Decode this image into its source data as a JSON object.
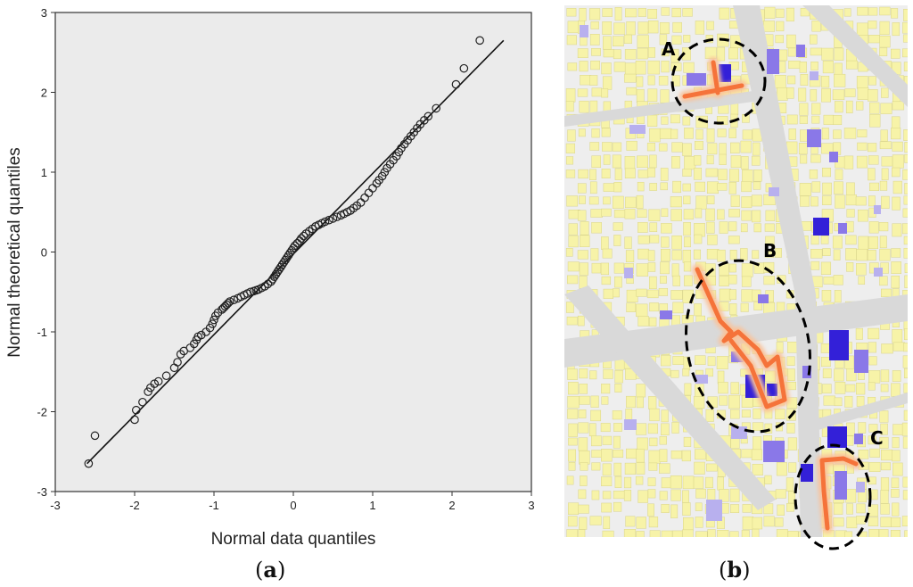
{
  "figure": {
    "captions": {
      "a": {
        "open": "(",
        "letter": "a",
        "close": ")"
      },
      "b": {
        "open": "(",
        "letter": "b",
        "close": ")"
      }
    }
  },
  "chart_data": {
    "type": "scatter",
    "subtype": "normal Q-Q plot",
    "xlabel": "Normal data quantiles",
    "ylabel": "Normal theoretical quantiles",
    "xlim": [
      -3,
      3
    ],
    "ylim": [
      -3,
      3
    ],
    "xticks": [
      "-3",
      "-2",
      "-1",
      "0",
      "1",
      "2",
      "3"
    ],
    "yticks": [
      "-3",
      "-2",
      "-1",
      "0",
      "1",
      "2",
      "3"
    ],
    "background": "#ebebeb",
    "reference_line": {
      "x": [
        -2.6,
        2.65
      ],
      "y": [
        -2.65,
        2.65
      ]
    },
    "points": {
      "x": [
        -2.58,
        -2.5,
        -2.0,
        -1.98,
        -1.9,
        -1.83,
        -1.8,
        -1.75,
        -1.7,
        -1.6,
        -1.5,
        -1.46,
        -1.42,
        -1.38,
        -1.3,
        -1.25,
        -1.22,
        -1.2,
        -1.16,
        -1.1,
        -1.05,
        -1.02,
        -1.0,
        -0.98,
        -0.95,
        -0.9,
        -0.88,
        -0.86,
        -0.84,
        -0.82,
        -0.8,
        -0.75,
        -0.7,
        -0.66,
        -0.62,
        -0.58,
        -0.54,
        -0.5,
        -0.47,
        -0.44,
        -0.4,
        -0.36,
        -0.32,
        -0.28,
        -0.26,
        -0.24,
        -0.22,
        -0.2,
        -0.18,
        -0.16,
        -0.14,
        -0.12,
        -0.1,
        -0.08,
        -0.06,
        -0.04,
        -0.02,
        0.0,
        0.02,
        0.05,
        0.08,
        0.1,
        0.13,
        0.16,
        0.2,
        0.24,
        0.28,
        0.32,
        0.36,
        0.4,
        0.45,
        0.5,
        0.55,
        0.6,
        0.64,
        0.68,
        0.72,
        0.76,
        0.8,
        0.85,
        0.9,
        0.95,
        1.0,
        1.05,
        1.08,
        1.12,
        1.15,
        1.18,
        1.22,
        1.26,
        1.3,
        1.33,
        1.36,
        1.4,
        1.44,
        1.48,
        1.52,
        1.56,
        1.6,
        1.65,
        1.7,
        1.8,
        2.05,
        2.15,
        2.35
      ],
      "y": [
        -2.65,
        -2.3,
        -2.1,
        -1.98,
        -1.88,
        -1.75,
        -1.7,
        -1.65,
        -1.62,
        -1.55,
        -1.45,
        -1.38,
        -1.28,
        -1.24,
        -1.2,
        -1.15,
        -1.1,
        -1.06,
        -1.04,
        -1.0,
        -0.95,
        -0.9,
        -0.85,
        -0.8,
        -0.76,
        -0.72,
        -0.7,
        -0.68,
        -0.66,
        -0.64,
        -0.62,
        -0.6,
        -0.58,
        -0.56,
        -0.54,
        -0.52,
        -0.5,
        -0.49,
        -0.48,
        -0.47,
        -0.45,
        -0.43,
        -0.4,
        -0.37,
        -0.34,
        -0.31,
        -0.28,
        -0.25,
        -0.22,
        -0.19,
        -0.16,
        -0.13,
        -0.1,
        -0.07,
        -0.04,
        -0.01,
        0.02,
        0.05,
        0.08,
        0.11,
        0.14,
        0.17,
        0.2,
        0.23,
        0.26,
        0.29,
        0.32,
        0.34,
        0.36,
        0.38,
        0.4,
        0.42,
        0.44,
        0.46,
        0.48,
        0.5,
        0.52,
        0.55,
        0.58,
        0.62,
        0.68,
        0.74,
        0.8,
        0.86,
        0.9,
        0.95,
        1.0,
        1.05,
        1.1,
        1.15,
        1.2,
        1.25,
        1.3,
        1.35,
        1.4,
        1.45,
        1.5,
        1.55,
        1.6,
        1.65,
        1.7,
        1.8,
        2.1,
        2.3,
        2.65
      ]
    }
  },
  "map": {
    "labels": [
      "A",
      "B",
      "C"
    ],
    "colors": {
      "background": "#eeeeee",
      "road": "#d9d9d9",
      "building": "#f7f3a8",
      "building_edge": "#d9d48a",
      "purple_light": "#b8b0ee",
      "purple": "#8a78e8",
      "purple_dark": "#3320d8",
      "route": "#f5733a",
      "route_glow": "#f9c29a",
      "ellipse": "#000000"
    }
  }
}
